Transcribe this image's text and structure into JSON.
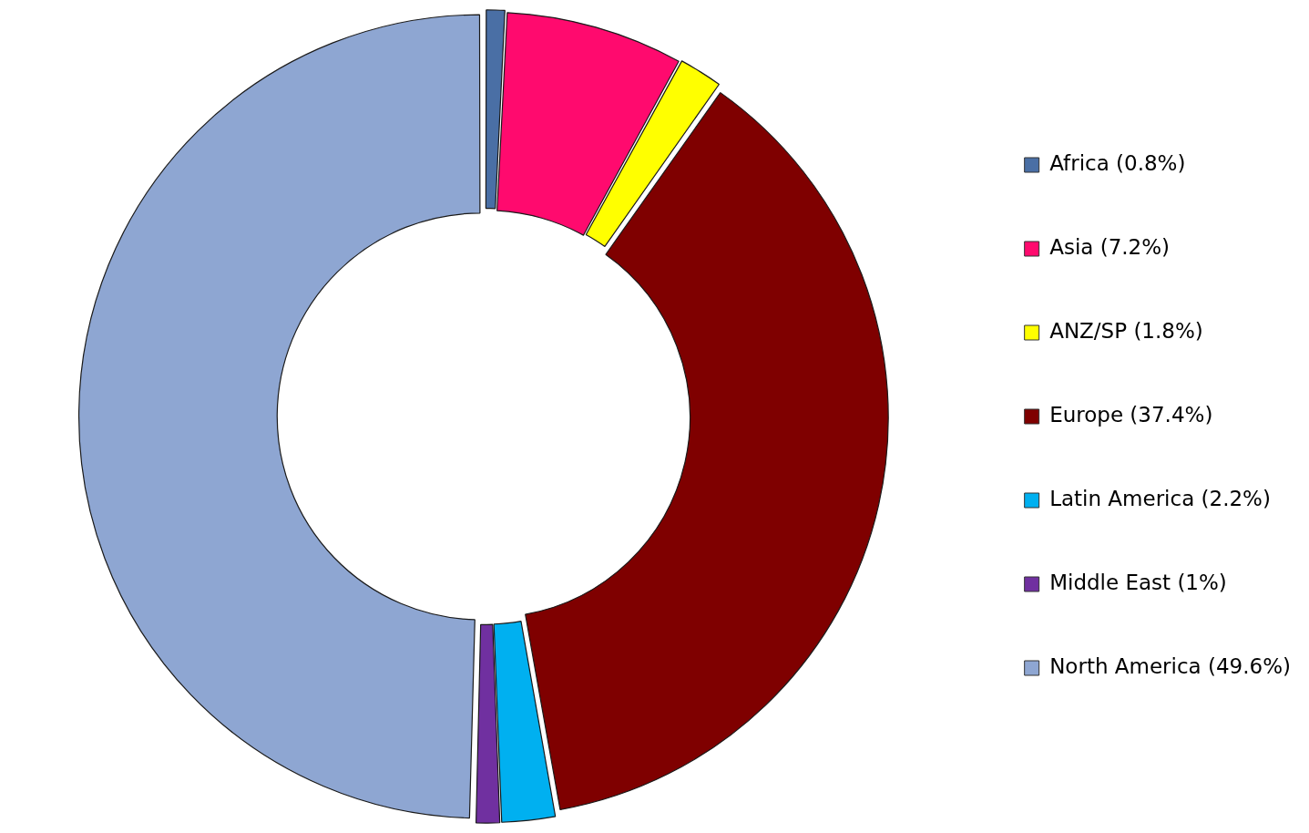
{
  "chart_data": {
    "type": "donut",
    "categories": [
      "Africa (0.8%)",
      "Asia (7.2%)",
      "ANZ/SP (1.8%)",
      "Europe (37.4%)",
      "Latin America (2.2%)",
      "Middle East (1%)",
      "North America (49.6%)"
    ],
    "values": [
      0.8,
      7.2,
      1.8,
      37.4,
      2.2,
      1,
      49.6
    ],
    "colors": [
      "#4a6fa5",
      "#ff0a6e",
      "#ffff00",
      "#7f0000",
      "#00b0f0",
      "#7030a0",
      "#8ea6d2"
    ],
    "legend": "right"
  }
}
